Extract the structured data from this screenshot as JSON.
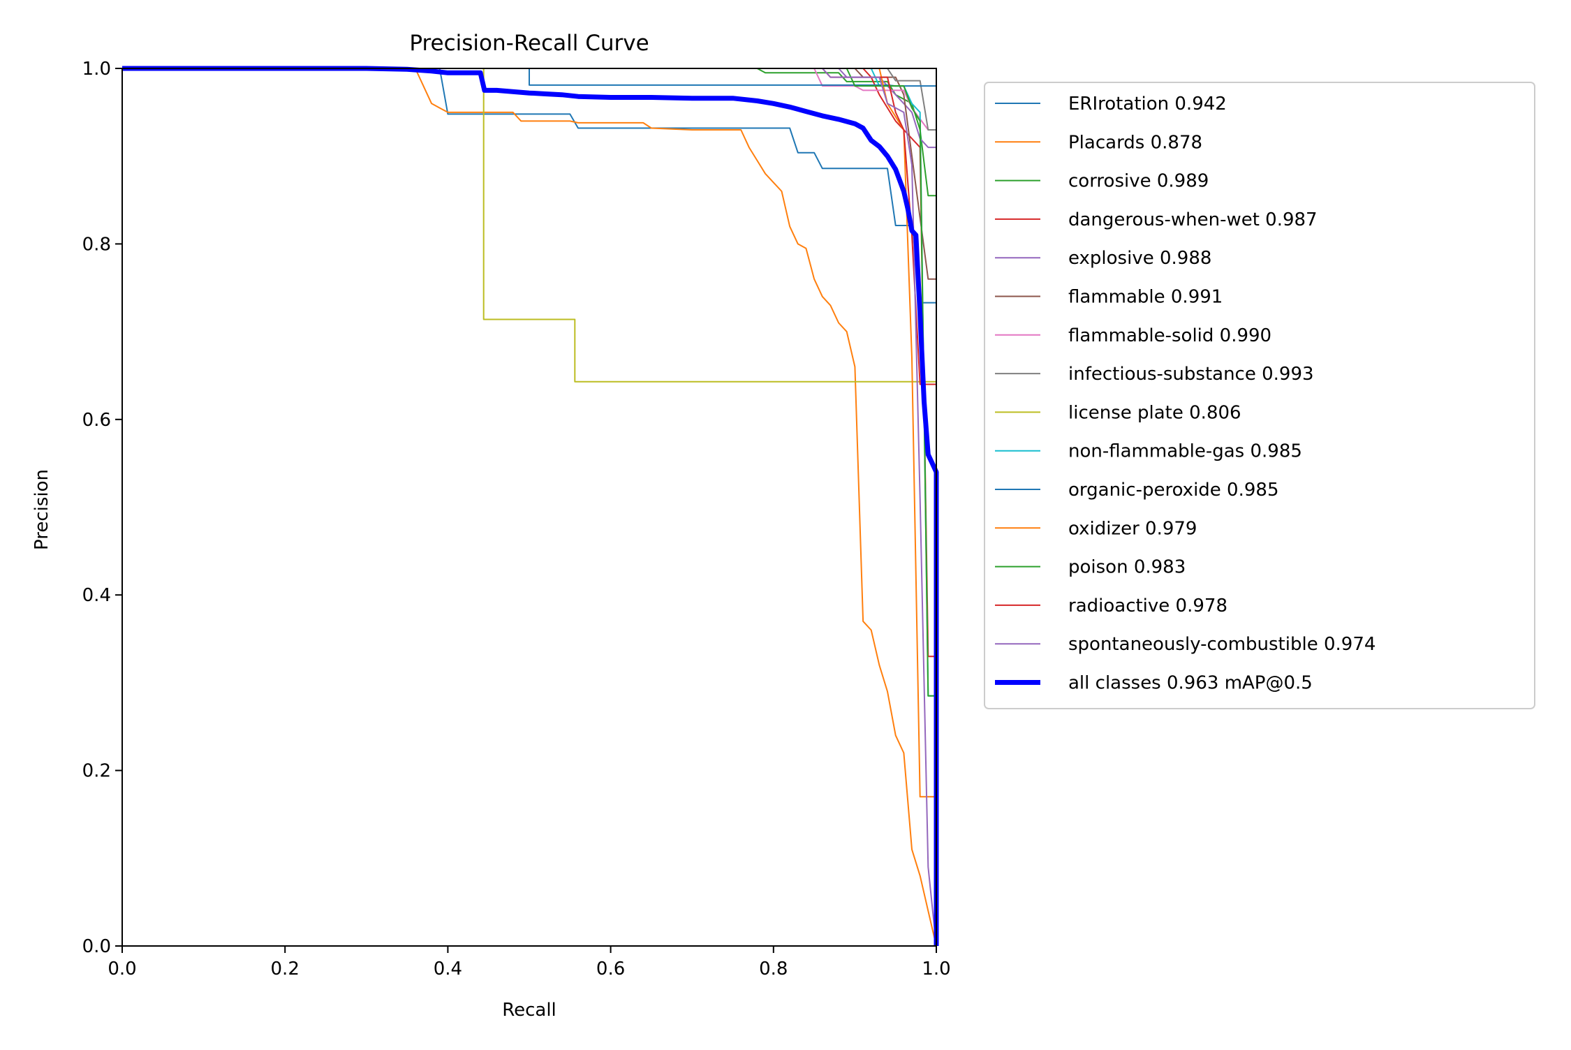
{
  "chart_data": {
    "type": "line",
    "title": "Precision-Recall Curve",
    "xlabel": "Recall",
    "ylabel": "Precision",
    "xlim": [
      0,
      1
    ],
    "ylim": [
      0,
      1
    ],
    "xticks": [
      0.0,
      0.2,
      0.4,
      0.6,
      0.8,
      1.0
    ],
    "yticks": [
      0.0,
      0.2,
      0.4,
      0.6,
      0.8,
      1.0
    ],
    "xtick_labels": [
      "0.0",
      "0.2",
      "0.4",
      "0.6",
      "0.8",
      "1.0"
    ],
    "ytick_labels": [
      "0.0",
      "0.2",
      "0.4",
      "0.6",
      "0.8",
      "1.0"
    ],
    "grid": false,
    "legend_position": "outside-right",
    "series": [
      {
        "name": "ERIrotation 0.942",
        "color": "#1f77b4",
        "x": [
          0,
          0.39,
          0.4,
          0.55,
          0.56,
          0.82,
          0.83,
          0.85,
          0.86,
          0.94,
          0.95,
          0.97,
          0.98,
          1.0,
          1.0
        ],
        "y": [
          1.0,
          1.0,
          0.948,
          0.948,
          0.932,
          0.932,
          0.904,
          0.904,
          0.886,
          0.886,
          0.821,
          0.821,
          0.733,
          0.733,
          0.0
        ]
      },
      {
        "name": "Placards 0.878",
        "color": "#ff7f0e",
        "x": [
          0,
          0.36,
          0.37,
          0.38,
          0.39,
          0.4,
          0.48,
          0.49,
          0.55,
          0.56,
          0.64,
          0.65,
          0.7,
          0.76,
          0.77,
          0.78,
          0.79,
          0.8,
          0.81,
          0.82,
          0.83,
          0.84,
          0.85,
          0.86,
          0.87,
          0.88,
          0.89,
          0.9,
          0.91,
          0.92,
          0.93,
          0.94,
          0.95,
          0.96,
          0.97,
          0.98,
          0.99,
          1.0
        ],
        "y": [
          1.0,
          1.0,
          0.98,
          0.96,
          0.955,
          0.95,
          0.95,
          0.94,
          0.94,
          0.938,
          0.938,
          0.932,
          0.93,
          0.93,
          0.91,
          0.895,
          0.88,
          0.87,
          0.86,
          0.82,
          0.8,
          0.795,
          0.76,
          0.74,
          0.73,
          0.71,
          0.7,
          0.66,
          0.37,
          0.36,
          0.32,
          0.29,
          0.24,
          0.22,
          0.11,
          0.08,
          0.04,
          0.0
        ]
      },
      {
        "name": "corrosive 0.989",
        "color": "#2ca02c",
        "x": [
          0,
          0.78,
          0.79,
          0.88,
          0.89,
          0.94,
          0.95,
          0.97,
          0.98,
          0.99,
          1.0,
          1.0
        ],
        "y": [
          1.0,
          1.0,
          0.995,
          0.995,
          0.985,
          0.985,
          0.97,
          0.96,
          0.93,
          0.855,
          0.855,
          0.0
        ]
      },
      {
        "name": "dangerous-when-wet 0.987",
        "color": "#d62728",
        "x": [
          0,
          0.86,
          0.87,
          0.92,
          0.93,
          0.95,
          0.96,
          0.98,
          0.99,
          1.0,
          1.0
        ],
        "y": [
          1.0,
          1.0,
          0.99,
          0.99,
          0.97,
          0.94,
          0.93,
          0.91,
          0.33,
          0.33,
          0.0
        ]
      },
      {
        "name": "explosive 0.988",
        "color": "#9467bd",
        "x": [
          0,
          0.88,
          0.89,
          0.93,
          0.94,
          0.96,
          0.97,
          0.98,
          0.99,
          1.0,
          1.0
        ],
        "y": [
          1.0,
          1.0,
          0.99,
          0.99,
          0.98,
          0.96,
          0.95,
          0.92,
          0.91,
          0.91,
          0.0
        ]
      },
      {
        "name": "flammable 0.991",
        "color": "#8c564b",
        "x": [
          0,
          0.9,
          0.91,
          0.95,
          0.96,
          0.99,
          1.0,
          1.0
        ],
        "y": [
          1.0,
          1.0,
          0.99,
          0.99,
          0.97,
          0.76,
          0.76,
          0.0
        ]
      },
      {
        "name": "flammable-solid 0.990",
        "color": "#e377c2",
        "x": [
          0,
          0.85,
          0.86,
          0.9,
          0.91,
          0.96,
          0.97,
          0.99,
          1.0,
          1.0
        ],
        "y": [
          1.0,
          1.0,
          0.98,
          0.98,
          0.975,
          0.975,
          0.955,
          0.93,
          0.93,
          0.0
        ]
      },
      {
        "name": "infectious-substance 0.993",
        "color": "#7f7f7f",
        "x": [
          0,
          0.94,
          0.95,
          0.98,
          0.99,
          1.0,
          1.0
        ],
        "y": [
          1.0,
          1.0,
          0.986,
          0.986,
          0.93,
          0.93,
          0.0
        ]
      },
      {
        "name": "license plate 0.806",
        "color": "#bcbd22",
        "x": [
          0,
          0.444,
          0.444,
          0.556,
          0.556,
          1.0,
          1.0
        ],
        "y": [
          1.0,
          1.0,
          0.714,
          0.714,
          0.643,
          0.643,
          0.0
        ]
      },
      {
        "name": "non-flammable-gas 0.985",
        "color": "#17becf",
        "x": [
          0,
          0.92,
          0.93,
          0.96,
          0.97,
          0.98,
          0.99,
          1.0,
          1.0
        ],
        "y": [
          1.0,
          1.0,
          0.98,
          0.98,
          0.96,
          0.95,
          0.285,
          0.285,
          0.0
        ]
      },
      {
        "name": "organic-peroxide 0.985",
        "color": "#1f77b4",
        "x": [
          0,
          0.5,
          0.5,
          0.94,
          0.95,
          0.99,
          1.0,
          1.0
        ],
        "y": [
          1.0,
          1.0,
          0.981,
          0.981,
          0.98,
          0.98,
          0.98,
          0.0
        ]
      },
      {
        "name": "oxidizer 0.979",
        "color": "#ff7f0e",
        "x": [
          0,
          0.93,
          0.94,
          0.96,
          0.97,
          0.98,
          0.99,
          1.0,
          1.0
        ],
        "y": [
          1.0,
          1.0,
          0.96,
          0.93,
          0.67,
          0.17,
          0.17,
          0.17,
          0.0
        ]
      },
      {
        "name": "poison 0.983",
        "color": "#2ca02c",
        "x": [
          0,
          0.89,
          0.9,
          0.96,
          0.97,
          0.98,
          0.99,
          1.0,
          1.0
        ],
        "y": [
          1.0,
          1.0,
          0.98,
          0.98,
          0.955,
          0.94,
          0.285,
          0.285,
          0.0
        ]
      },
      {
        "name": "radioactive 0.978",
        "color": "#d62728",
        "x": [
          0,
          0.91,
          0.92,
          0.94,
          0.95,
          0.96,
          0.97,
          0.98,
          0.99,
          1.0,
          1.0
        ],
        "y": [
          1.0,
          1.0,
          0.99,
          0.99,
          0.95,
          0.93,
          0.81,
          0.64,
          0.64,
          0.64,
          0.0
        ]
      },
      {
        "name": "spontaneously-combustible 0.974",
        "color": "#9467bd",
        "x": [
          0,
          0.86,
          0.87,
          0.93,
          0.94,
          0.96,
          0.97,
          0.98,
          0.99,
          1.0,
          1.0
        ],
        "y": [
          1.0,
          1.0,
          0.99,
          0.99,
          0.96,
          0.95,
          0.89,
          0.51,
          0.09,
          0.0,
          0.0
        ]
      },
      {
        "name": "all classes 0.963 mAP@0.5",
        "color": "#0000ff",
        "bold": true,
        "x": [
          0,
          0.3,
          0.35,
          0.38,
          0.4,
          0.44,
          0.445,
          0.46,
          0.5,
          0.52,
          0.54,
          0.56,
          0.6,
          0.65,
          0.7,
          0.75,
          0.78,
          0.8,
          0.82,
          0.84,
          0.86,
          0.88,
          0.9,
          0.91,
          0.92,
          0.93,
          0.94,
          0.95,
          0.96,
          0.965,
          0.97,
          0.975,
          0.98,
          0.985,
          0.99,
          0.995,
          1.0,
          1.0
        ],
        "y": [
          1.0,
          1.0,
          0.999,
          0.997,
          0.995,
          0.995,
          0.975,
          0.975,
          0.972,
          0.971,
          0.97,
          0.968,
          0.967,
          0.967,
          0.966,
          0.966,
          0.963,
          0.96,
          0.956,
          0.951,
          0.946,
          0.942,
          0.937,
          0.932,
          0.918,
          0.911,
          0.9,
          0.885,
          0.86,
          0.84,
          0.815,
          0.81,
          0.72,
          0.62,
          0.56,
          0.55,
          0.54,
          0.0
        ]
      }
    ]
  }
}
